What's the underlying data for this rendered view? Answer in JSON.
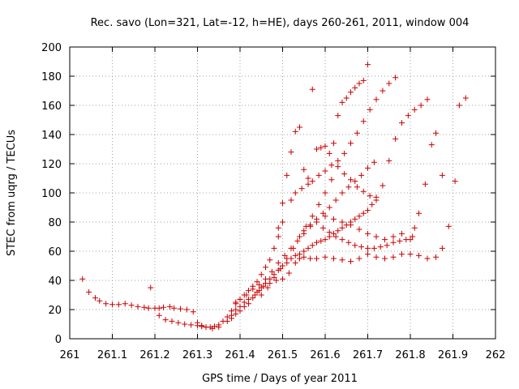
{
  "chart_data": {
    "type": "scatter",
    "title": "Rec. savo (Lon=321, Lat=-12, h=HE), days 260-261, 2011, window 004",
    "xlabel": "GPS time / Days of year 2011",
    "ylabel": "STEC from uqrg / TECUs",
    "xlim": [
      261,
      262
    ],
    "ylim": [
      0,
      200
    ],
    "xticks": [
      "261",
      "261.1",
      "261.2",
      "261.3",
      "261.4",
      "261.5",
      "261.6",
      "261.7",
      "261.8",
      "261.9",
      "262"
    ],
    "yticks": [
      "0",
      "20",
      "40",
      "60",
      "80",
      "100",
      "120",
      "140",
      "160",
      "180",
      "200"
    ],
    "grid": true,
    "marker": "+",
    "color": "#cc0000",
    "series": [
      {
        "points": [
          [
            261.03,
            41
          ],
          [
            261.045,
            32
          ],
          [
            261.06,
            28
          ],
          [
            261.07,
            26
          ],
          [
            261.085,
            24
          ],
          [
            261.1,
            23.5
          ],
          [
            261.115,
            23.5
          ],
          [
            261.13,
            24
          ],
          [
            261.145,
            23
          ],
          [
            261.16,
            22
          ],
          [
            261.175,
            21.5
          ],
          [
            261.185,
            21
          ],
          [
            261.19,
            35
          ],
          [
            261.2,
            21
          ],
          [
            261.21,
            21
          ],
          [
            261.22,
            21.5
          ],
          [
            261.235,
            22
          ],
          [
            261.245,
            21
          ],
          [
            261.26,
            20.5
          ],
          [
            261.275,
            20
          ],
          [
            261.29,
            18.5
          ],
          [
            261.21,
            16
          ],
          [
            261.225,
            13
          ],
          [
            261.24,
            12
          ],
          [
            261.255,
            11
          ],
          [
            261.27,
            10
          ],
          [
            261.285,
            9.5
          ],
          [
            261.3,
            9
          ],
          [
            261.31,
            8.5
          ],
          [
            261.32,
            8
          ],
          [
            261.33,
            8
          ],
          [
            261.34,
            8.5
          ],
          [
            261.35,
            9.5
          ],
          [
            261.36,
            12
          ],
          [
            261.37,
            15
          ],
          [
            261.38,
            19
          ],
          [
            261.39,
            24
          ],
          [
            261.4,
            27
          ],
          [
            261.41,
            30
          ],
          [
            261.42,
            33
          ],
          [
            261.43,
            36
          ],
          [
            261.44,
            39
          ],
          [
            261.45,
            44
          ],
          [
            261.46,
            49
          ],
          [
            261.47,
            54
          ],
          [
            261.48,
            62
          ],
          [
            261.49,
            70
          ],
          [
            261.5,
            80
          ],
          [
            261.3,
            11
          ],
          [
            261.31,
            9
          ],
          [
            261.32,
            8
          ],
          [
            261.335,
            7
          ],
          [
            261.35,
            8
          ],
          [
            261.37,
            12
          ],
          [
            261.38,
            16
          ],
          [
            261.39,
            20
          ],
          [
            261.4,
            22
          ],
          [
            261.41,
            25
          ],
          [
            261.42,
            27
          ],
          [
            261.435,
            30
          ],
          [
            261.445,
            33
          ],
          [
            261.455,
            36
          ],
          [
            261.47,
            38
          ],
          [
            261.485,
            40
          ],
          [
            261.5,
            41
          ],
          [
            261.515,
            45
          ],
          [
            261.53,
            52
          ],
          [
            261.54,
            55
          ],
          [
            261.55,
            56
          ],
          [
            261.565,
            55
          ],
          [
            261.58,
            55
          ],
          [
            261.6,
            56
          ],
          [
            261.62,
            55
          ],
          [
            261.64,
            54
          ],
          [
            261.66,
            53
          ],
          [
            261.68,
            55
          ],
          [
            261.7,
            58
          ],
          [
            261.72,
            56
          ],
          [
            261.74,
            55
          ],
          [
            261.76,
            56
          ],
          [
            261.78,
            58
          ],
          [
            261.8,
            58
          ],
          [
            261.82,
            57
          ],
          [
            261.84,
            55
          ],
          [
            261.86,
            56
          ],
          [
            261.875,
            62
          ],
          [
            261.89,
            77
          ],
          [
            261.905,
            108
          ],
          [
            261.915,
            160
          ],
          [
            261.93,
            165
          ],
          [
            261.38,
            14
          ],
          [
            261.39,
            17
          ],
          [
            261.4,
            19
          ],
          [
            261.41,
            22
          ],
          [
            261.42,
            24
          ],
          [
            261.43,
            28
          ],
          [
            261.44,
            32
          ],
          [
            261.45,
            35
          ],
          [
            261.46,
            38
          ],
          [
            261.47,
            41
          ],
          [
            261.48,
            44
          ],
          [
            261.49,
            47
          ],
          [
            261.5,
            50
          ],
          [
            261.51,
            52
          ],
          [
            261.52,
            55
          ],
          [
            261.53,
            57
          ],
          [
            261.54,
            58
          ],
          [
            261.55,
            60
          ],
          [
            261.56,
            62
          ],
          [
            261.57,
            64
          ],
          [
            261.58,
            66
          ],
          [
            261.59,
            67
          ],
          [
            261.6,
            68
          ],
          [
            261.61,
            70
          ],
          [
            261.62,
            72
          ],
          [
            261.63,
            74
          ],
          [
            261.64,
            76
          ],
          [
            261.65,
            78
          ],
          [
            261.66,
            80
          ],
          [
            261.67,
            82
          ],
          [
            261.68,
            84
          ],
          [
            261.69,
            86
          ],
          [
            261.7,
            88
          ],
          [
            261.71,
            92
          ],
          [
            261.72,
            97
          ],
          [
            261.39,
            25
          ],
          [
            261.4,
            27
          ],
          [
            261.415,
            30
          ],
          [
            261.43,
            34
          ],
          [
            261.445,
            37
          ],
          [
            261.46,
            41
          ],
          [
            261.475,
            46
          ],
          [
            261.49,
            52
          ],
          [
            261.505,
            57
          ],
          [
            261.52,
            62
          ],
          [
            261.535,
            67
          ],
          [
            261.55,
            72
          ],
          [
            261.565,
            77
          ],
          [
            261.58,
            82
          ],
          [
            261.595,
            86
          ],
          [
            261.61,
            90
          ],
          [
            261.625,
            95
          ],
          [
            261.64,
            100
          ],
          [
            261.655,
            104
          ],
          [
            261.67,
            108
          ],
          [
            261.685,
            112
          ],
          [
            261.7,
            117
          ],
          [
            261.715,
            121
          ],
          [
            261.45,
            30
          ],
          [
            261.465,
            35
          ],
          [
            261.48,
            42
          ],
          [
            261.495,
            48
          ],
          [
            261.51,
            55
          ],
          [
            261.525,
            62
          ],
          [
            261.54,
            70
          ],
          [
            261.555,
            77
          ],
          [
            261.57,
            84
          ],
          [
            261.585,
            92
          ],
          [
            261.6,
            100
          ],
          [
            261.615,
            109
          ],
          [
            261.63,
            118
          ],
          [
            261.645,
            127
          ],
          [
            261.66,
            134
          ],
          [
            261.675,
            141
          ],
          [
            261.69,
            149
          ],
          [
            261.705,
            157
          ],
          [
            261.72,
            164
          ],
          [
            261.735,
            170
          ],
          [
            261.75,
            175
          ],
          [
            261.765,
            179
          ],
          [
            261.49,
            76
          ],
          [
            261.5,
            93
          ],
          [
            261.51,
            112
          ],
          [
            261.52,
            128
          ],
          [
            261.53,
            142
          ],
          [
            261.54,
            145
          ],
          [
            261.55,
            116
          ],
          [
            261.56,
            110
          ],
          [
            261.57,
            171
          ],
          [
            261.58,
            130
          ],
          [
            261.59,
            131
          ],
          [
            261.6,
            132
          ],
          [
            261.61,
            127
          ],
          [
            261.62,
            134
          ],
          [
            261.63,
            153
          ],
          [
            261.64,
            162
          ],
          [
            261.65,
            165
          ],
          [
            261.66,
            169
          ],
          [
            261.67,
            172
          ],
          [
            261.68,
            175
          ],
          [
            261.69,
            177
          ],
          [
            261.7,
            188
          ],
          [
            261.52,
            95
          ],
          [
            261.53,
            100
          ],
          [
            261.545,
            103
          ],
          [
            261.56,
            106
          ],
          [
            261.57,
            108
          ],
          [
            261.585,
            112
          ],
          [
            261.6,
            115
          ],
          [
            261.615,
            119
          ],
          [
            261.63,
            122
          ],
          [
            261.645,
            113
          ],
          [
            261.66,
            109
          ],
          [
            261.675,
            104
          ],
          [
            261.69,
            101
          ],
          [
            261.705,
            98
          ],
          [
            261.72,
            95
          ],
          [
            261.735,
            105
          ],
          [
            261.75,
            122
          ],
          [
            261.765,
            137
          ],
          [
            261.78,
            148
          ],
          [
            261.795,
            153
          ],
          [
            261.81,
            157
          ],
          [
            261.825,
            160
          ],
          [
            261.84,
            164
          ],
          [
            261.55,
            74
          ],
          [
            261.565,
            78
          ],
          [
            261.58,
            80
          ],
          [
            261.595,
            76
          ],
          [
            261.61,
            73
          ],
          [
            261.625,
            70
          ],
          [
            261.64,
            68
          ],
          [
            261.655,
            66
          ],
          [
            261.67,
            64
          ],
          [
            261.685,
            63
          ],
          [
            261.7,
            62
          ],
          [
            261.715,
            62
          ],
          [
            261.73,
            63
          ],
          [
            261.745,
            64
          ],
          [
            261.76,
            66
          ],
          [
            261.775,
            67
          ],
          [
            261.79,
            68
          ],
          [
            261.805,
            70
          ],
          [
            261.82,
            86
          ],
          [
            261.835,
            106
          ],
          [
            261.85,
            133
          ],
          [
            261.86,
            141
          ],
          [
            261.875,
            112
          ],
          [
            261.6,
            84
          ],
          [
            261.62,
            82
          ],
          [
            261.64,
            80
          ],
          [
            261.66,
            78
          ],
          [
            261.68,
            75
          ],
          [
            261.7,
            72
          ],
          [
            261.72,
            70
          ],
          [
            261.74,
            68
          ],
          [
            261.76,
            70
          ],
          [
            261.78,
            72
          ],
          [
            261.8,
            68
          ],
          [
            261.81,
            76
          ]
        ]
      }
    ]
  }
}
